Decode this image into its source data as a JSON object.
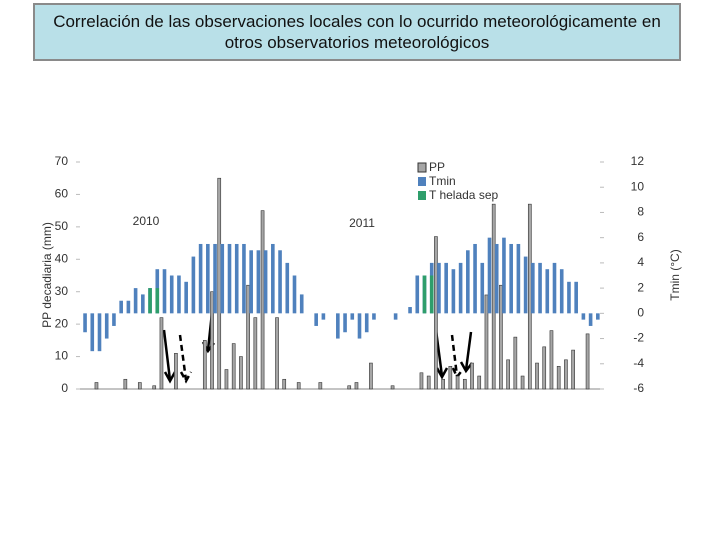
{
  "chart_data": {
    "type": "bar",
    "title": "Correlación de las observaciones locales con lo ocurrido meteorológicamente en otros observatorios meteorológicos",
    "y_label": "PP decadiaria (mm)",
    "y2_label": "Tmin (°C)",
    "annotations": [
      "2010",
      "2011"
    ],
    "categories": [
      null,
      null,
      null,
      null,
      null,
      null,
      null,
      null,
      null,
      null,
      null,
      null,
      null,
      null,
      null,
      null,
      null,
      null,
      null,
      null,
      null,
      null,
      null,
      null,
      null,
      null,
      null,
      null,
      null,
      null,
      null,
      null,
      null,
      null,
      null,
      null,
      null,
      null,
      null,
      null,
      null,
      null,
      null,
      null,
      null,
      null,
      null,
      null,
      null,
      null,
      null,
      null,
      null,
      null,
      null,
      null,
      null,
      null,
      null,
      null,
      null,
      null,
      null,
      null,
      null,
      null,
      null,
      null,
      null,
      null,
      null,
      null
    ],
    "series": [
      {
        "name": "PP",
        "color": "#a6a6a6",
        "axis": "y",
        "values": [
          0,
          0,
          2,
          0,
          0,
          0,
          3,
          0,
          2,
          0,
          1,
          22,
          0,
          11,
          0,
          0,
          0,
          15,
          30,
          65,
          6,
          14,
          10,
          32,
          22,
          55,
          0,
          22,
          3,
          0,
          2,
          0,
          0,
          2,
          0,
          0,
          0,
          1,
          2,
          0,
          8,
          0,
          0,
          1,
          0,
          0,
          0,
          5,
          4,
          47,
          3,
          7,
          4,
          3,
          8,
          4,
          29,
          57,
          32,
          9,
          16,
          4,
          57,
          8,
          13,
          18,
          7,
          9,
          12,
          0,
          17,
          0
        ]
      },
      {
        "name": "Tmin",
        "color": "#4f81bd",
        "axis": "y2",
        "values": [
          -1.5,
          -3,
          -3,
          -2,
          -1,
          1,
          1,
          2,
          1.5,
          2,
          3.5,
          3.5,
          3,
          3,
          2.5,
          4.5,
          5.5,
          5.5,
          5.5,
          5.5,
          5.5,
          5.5,
          5.5,
          5,
          5,
          5,
          5.5,
          5,
          4,
          3,
          1.5,
          0,
          -1,
          -0.5,
          0,
          -2,
          -1.5,
          -0.5,
          -2,
          -1.5,
          -0.5,
          0,
          0,
          -0.5,
          0,
          0.5,
          3,
          3,
          4,
          4,
          4,
          3.5,
          4,
          5,
          5.5,
          4,
          6,
          5.5,
          6,
          5.5,
          5.5,
          4.5,
          4,
          4,
          3.5,
          4,
          3.5,
          2.5,
          2.5,
          -0.5,
          -1,
          -0.5
        ]
      },
      {
        "name": "T helada sep",
        "color": "#2e9e6b",
        "axis": "y2",
        "values": [
          null,
          null,
          null,
          null,
          null,
          null,
          null,
          null,
          null,
          2,
          2,
          null,
          null,
          null,
          null,
          null,
          null,
          null,
          null,
          null,
          null,
          null,
          null,
          null,
          null,
          null,
          null,
          null,
          null,
          null,
          null,
          null,
          null,
          null,
          null,
          null,
          null,
          null,
          null,
          null,
          null,
          null,
          null,
          null,
          null,
          null,
          null,
          3,
          3,
          null,
          null,
          null,
          null,
          null,
          null,
          null,
          null,
          null,
          null,
          null,
          null,
          null,
          null,
          null,
          null,
          null,
          null,
          null,
          null,
          null,
          null,
          null
        ]
      }
    ],
    "ylim": [
      0,
      70
    ],
    "yticks": [
      0,
      10,
      20,
      30,
      40,
      50,
      60,
      70
    ],
    "y2lim": [
      -6,
      12
    ],
    "y2ticks": [
      -6,
      -4,
      -2,
      0,
      2,
      4,
      6,
      8,
      10,
      12
    ]
  }
}
